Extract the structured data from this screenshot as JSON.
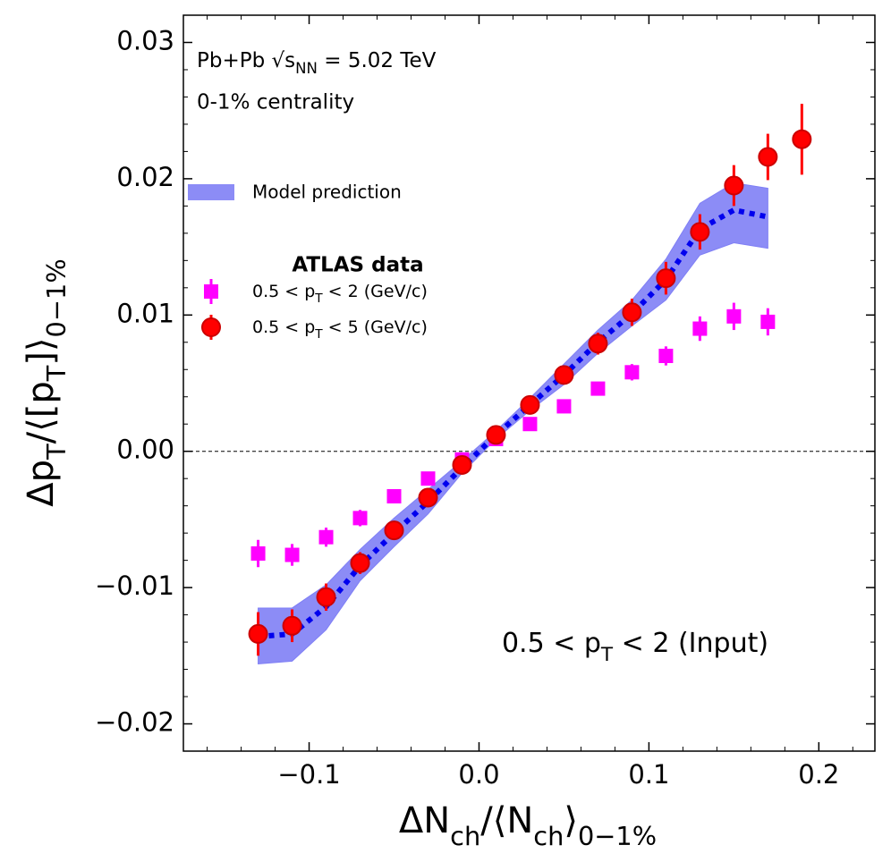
{
  "chart_data": {
    "type": "scatter",
    "xlabel": "ΔN_{ch}/⟨N_{ch}⟩_{0−1%}",
    "ylabel": "Δp_{T}/⟨[p_{T}]⟩_{0−1%}",
    "annotations": [
      "Pb+Pb √s_{NN} = 5.02 TeV",
      "0-1% centrality",
      "0.5 < p_{T} < 2 (Input)"
    ],
    "legend_title": "ATLAS data",
    "xlim": [
      -0.174,
      0.233
    ],
    "ylim": [
      -0.022,
      0.032
    ],
    "xticks": [
      {
        "value": -0.1,
        "label": "−0.1"
      },
      {
        "value": 0,
        "label": "0.0"
      },
      {
        "value": 0.1,
        "label": "0.1"
      },
      {
        "value": 0.2,
        "label": "0.2"
      }
    ],
    "xminorticks": [
      -0.16,
      -0.14,
      -0.12,
      -0.08,
      -0.06,
      -0.04,
      -0.02,
      0.02,
      0.04,
      0.06,
      0.08,
      0.12,
      0.14,
      0.16,
      0.18,
      0.22
    ],
    "yticks": [
      {
        "value": -0.02,
        "label": "−0.02"
      },
      {
        "value": -0.01,
        "label": "−0.01"
      },
      {
        "value": 0,
        "label": "0.00"
      },
      {
        "value": 0.01,
        "label": "0.01"
      },
      {
        "value": 0.02,
        "label": "0.02"
      },
      {
        "value": 0.03,
        "label": "0.03"
      }
    ],
    "yminorticks": [
      -0.018,
      -0.016,
      -0.014,
      -0.012,
      -0.008,
      -0.006,
      -0.004,
      -0.002,
      0.002,
      0.004,
      0.006,
      0.008,
      0.012,
      0.014,
      0.016,
      0.018,
      0.022,
      0.024,
      0.026,
      0.028
    ],
    "zero_line": true,
    "model": {
      "name": "Model prediction",
      "color": "#7f7ff5",
      "line_color": "#0000ee",
      "x": [
        -0.13,
        -0.11,
        -0.09,
        -0.07,
        -0.05,
        -0.03,
        -0.01,
        0.01,
        0.03,
        0.05,
        0.07,
        0.09,
        0.11,
        0.13,
        0.15,
        0.17
      ],
      "upper": [
        -0.0115,
        -0.0115,
        -0.0098,
        -0.0072,
        -0.0049,
        -0.0028,
        -0.0007,
        0.0015,
        0.0039,
        0.0064,
        0.0089,
        0.0111,
        0.0141,
        0.0182,
        0.0197,
        0.0193
      ],
      "lower": [
        -0.0156,
        -0.0154,
        -0.0131,
        -0.0095,
        -0.007,
        -0.0046,
        -0.0016,
        0.0009,
        0.003,
        0.0049,
        0.0072,
        0.0092,
        0.0111,
        0.0144,
        0.0153,
        0.0149
      ],
      "values": [
        -0.0136,
        -0.0134,
        -0.0114,
        -0.0084,
        -0.006,
        -0.0037,
        -0.0012,
        0.0012,
        0.0034,
        0.0056,
        0.008,
        0.0101,
        0.0126,
        0.0163,
        0.0177,
        0.0172
      ]
    },
    "series": [
      {
        "name": "0.5 < p_{T} < 2 (GeV/c)",
        "color": "#ff00ff",
        "marker": "square",
        "x": [
          -0.13,
          -0.11,
          -0.09,
          -0.07,
          -0.05,
          -0.03,
          -0.01,
          0.01,
          0.03,
          0.05,
          0.07,
          0.09,
          0.11,
          0.13,
          0.15,
          0.17
        ],
        "values": [
          -0.0075,
          -0.0076,
          -0.0063,
          -0.0049,
          -0.0033,
          -0.002,
          -0.0006,
          0.0009,
          0.002,
          0.0033,
          0.0046,
          0.0058,
          0.007,
          0.009,
          0.0099,
          0.0095
        ],
        "errors": [
          0.001,
          0.0008,
          0.0007,
          0.0006,
          0.0005,
          0.0004,
          0.0004,
          0.0004,
          0.0004,
          0.0005,
          0.0005,
          0.0006,
          0.0007,
          0.0009,
          0.001,
          0.001
        ]
      },
      {
        "name": "0.5 < p_{T} < 5 (GeV/c)",
        "color": "#ff0000",
        "marker": "circle",
        "x": [
          -0.13,
          -0.11,
          -0.09,
          -0.07,
          -0.05,
          -0.03,
          -0.01,
          0.01,
          0.03,
          0.05,
          0.07,
          0.09,
          0.11,
          0.13,
          0.15,
          0.17,
          0.19
        ],
        "values": [
          -0.0134,
          -0.0128,
          -0.0107,
          -0.0082,
          -0.0058,
          -0.0034,
          -0.001,
          0.0012,
          0.0034,
          0.0056,
          0.0079,
          0.0102,
          0.0127,
          0.0161,
          0.0195,
          0.0216,
          0.0229
        ],
        "errors": [
          0.0016,
          0.0012,
          0.001,
          0.0008,
          0.0006,
          0.0005,
          0.0005,
          0.0005,
          0.0006,
          0.0007,
          0.0008,
          0.001,
          0.0012,
          0.0013,
          0.0015,
          0.0017,
          0.0026
        ]
      }
    ]
  }
}
